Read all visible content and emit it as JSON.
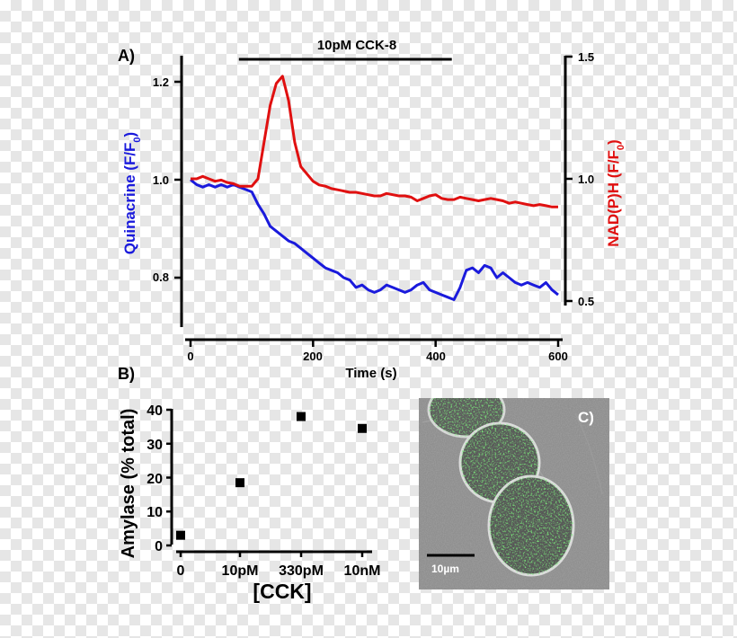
{
  "panel_labels": {
    "a": "A)",
    "b": "B)",
    "c": "C)"
  },
  "colors": {
    "quinacrine": "#1a1adc",
    "nadph": "#e01010",
    "axis": "#000000",
    "cells": "#33cc33"
  },
  "chart_data": [
    {
      "type": "line",
      "panel": "A",
      "stimulus_label": "10pM CCK-8",
      "stimulus_range": [
        120,
        425
      ],
      "xlabel": "Time (s)",
      "xlim": [
        0,
        600
      ],
      "xticks": [
        "0",
        "200",
        "400",
        "600"
      ],
      "ylabel_left": "Quinacrine (F/F",
      "ylabel_left_sub": "0",
      "ylabel_left_close": ")",
      "ylim_left": [
        0.72,
        1.25
      ],
      "yticks_left": [
        "0.8",
        "1.0",
        "1.2"
      ],
      "ylabel_right": "NAD(P)H (F/F",
      "ylabel_right_sub": "0",
      "ylabel_right_close": ")",
      "ylim_right": [
        0.45,
        1.5
      ],
      "yticks_right": [
        "0.5",
        "1.0",
        "1.5"
      ],
      "series": [
        {
          "axis": "left",
          "x": [
            0,
            10,
            20,
            30,
            40,
            50,
            60,
            70,
            80,
            90,
            100,
            110,
            120,
            130,
            140,
            150,
            160,
            170,
            180,
            190,
            200,
            210,
            220,
            230,
            240,
            250,
            260,
            270,
            280,
            290,
            300,
            310,
            320,
            330,
            340,
            350,
            360,
            370,
            380,
            390,
            400,
            410,
            420,
            430,
            440,
            450,
            460,
            470,
            480,
            490,
            500,
            510,
            520,
            530,
            540,
            550,
            560,
            570,
            580,
            590,
            600
          ],
          "y": [
            1.0,
            0.99,
            0.985,
            0.99,
            0.985,
            0.99,
            0.985,
            0.99,
            0.985,
            0.98,
            0.975,
            0.95,
            0.93,
            0.905,
            0.895,
            0.885,
            0.875,
            0.87,
            0.86,
            0.85,
            0.84,
            0.83,
            0.82,
            0.815,
            0.81,
            0.8,
            0.795,
            0.78,
            0.785,
            0.775,
            0.77,
            0.775,
            0.785,
            0.78,
            0.775,
            0.77,
            0.775,
            0.785,
            0.79,
            0.775,
            0.77,
            0.765,
            0.76,
            0.755,
            0.78,
            0.815,
            0.82,
            0.81,
            0.825,
            0.82,
            0.8,
            0.81,
            0.8,
            0.79,
            0.785,
            0.79,
            0.785,
            0.78,
            0.79,
            0.775,
            0.765
          ]
        },
        {
          "axis": "right",
          "x": [
            0,
            10,
            20,
            30,
            40,
            50,
            60,
            70,
            80,
            90,
            100,
            110,
            120,
            130,
            140,
            150,
            160,
            170,
            180,
            190,
            200,
            210,
            220,
            230,
            240,
            250,
            260,
            270,
            280,
            290,
            300,
            310,
            320,
            330,
            340,
            350,
            360,
            370,
            380,
            390,
            400,
            410,
            420,
            430,
            440,
            450,
            460,
            470,
            480,
            490,
            500,
            510,
            520,
            530,
            540,
            550,
            560,
            570,
            580,
            590,
            600
          ],
          "y": [
            1.0,
            1.0,
            1.01,
            1.0,
            0.99,
            0.995,
            0.985,
            0.98,
            0.97,
            0.97,
            0.97,
            1.0,
            1.15,
            1.3,
            1.39,
            1.42,
            1.32,
            1.15,
            1.05,
            1.02,
            0.99,
            0.975,
            0.97,
            0.96,
            0.955,
            0.95,
            0.945,
            0.945,
            0.94,
            0.935,
            0.93,
            0.93,
            0.94,
            0.935,
            0.93,
            0.93,
            0.925,
            0.91,
            0.92,
            0.93,
            0.935,
            0.92,
            0.915,
            0.915,
            0.925,
            0.92,
            0.915,
            0.91,
            0.915,
            0.92,
            0.915,
            0.91,
            0.9,
            0.905,
            0.9,
            0.895,
            0.89,
            0.895,
            0.89,
            0.885,
            0.885
          ]
        }
      ]
    },
    {
      "type": "scatter",
      "panel": "B",
      "xlabel": "[CCK]",
      "ylabel": "Amylase (% total)",
      "categories": [
        "0",
        "10pM",
        "330pM",
        "10nM"
      ],
      "values": [
        3,
        18.5,
        38,
        34.5
      ],
      "ylim": [
        0,
        40
      ],
      "yticks": [
        "0",
        "10",
        "20",
        "30",
        "40"
      ]
    }
  ],
  "micrograph": {
    "scale_bar_label": "10µm"
  }
}
